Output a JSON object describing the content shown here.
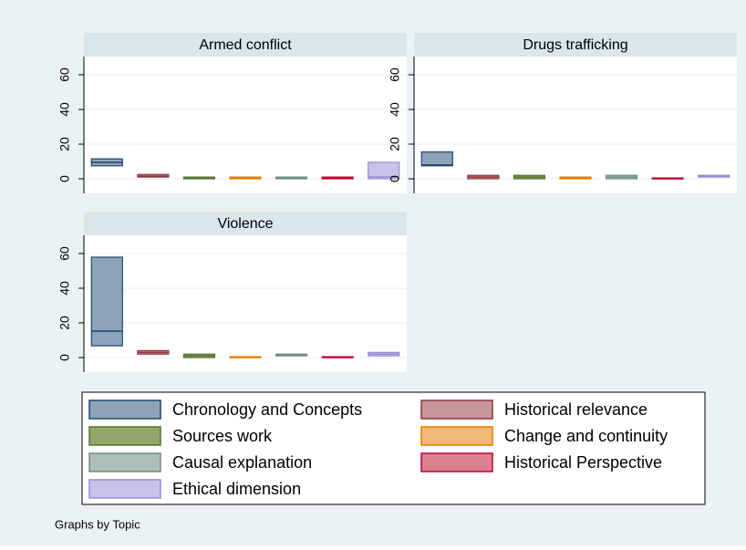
{
  "chart_data": [
    {
      "type": "box",
      "title": "Armed conflict",
      "ylim": [
        -8.4,
        70.5
      ],
      "yticks": [
        0,
        20,
        40,
        60
      ],
      "q1": [
        7.5,
        1,
        0,
        0,
        0,
        0,
        0
      ],
      "median": [
        9.5,
        1.5,
        0.5,
        0.5,
        0.5,
        0.5,
        1
      ],
      "q3": [
        11.5,
        2.5,
        1,
        1,
        1,
        1,
        9.5
      ]
    },
    {
      "type": "box",
      "title": "Drugs trafficking",
      "ylim": [
        -8.4,
        70.5
      ],
      "yticks": [
        0,
        20,
        40,
        60
      ],
      "q1": [
        7.5,
        0,
        0,
        0,
        0,
        0,
        1
      ],
      "median": [
        8,
        1,
        1,
        0.5,
        1,
        0,
        1.5
      ],
      "q3": [
        15.5,
        2,
        2,
        1,
        2,
        0.5,
        2
      ]
    },
    {
      "type": "box",
      "title": "Violence",
      "ylim": [
        -8.4,
        70.5
      ],
      "yticks": [
        0,
        20,
        40,
        60
      ],
      "q1": [
        6.8,
        2,
        0,
        0,
        1,
        0,
        1
      ],
      "median": [
        15.3,
        3,
        1,
        0,
        1.5,
        0,
        2
      ],
      "q3": [
        57.9,
        4,
        2,
        0.5,
        2,
        0.5,
        3
      ]
    }
  ],
  "legend": {
    "series": [
      {
        "name": "Chronology and Concepts",
        "color": "#8fa3b8",
        "edge": "#1a476f"
      },
      {
        "name": "Historical relevance",
        "color": "#c8959a",
        "edge": "#90353b"
      },
      {
        "name": "Sources work",
        "color": "#93a66c",
        "edge": "#55752f"
      },
      {
        "name": "Change and continuity",
        "color": "#f2b978",
        "edge": "#e37e00"
      },
      {
        "name": "Causal explanation",
        "color": "#adbfb6",
        "edge": "#6e8e84"
      },
      {
        "name": "Historical Perspective",
        "color": "#dc7f91",
        "edge": "#c10534"
      },
      {
        "name": "Ethical dimension",
        "color": "#c9c2ec",
        "edge": "#938dd2"
      }
    ]
  },
  "note": "Graphs by Topic"
}
